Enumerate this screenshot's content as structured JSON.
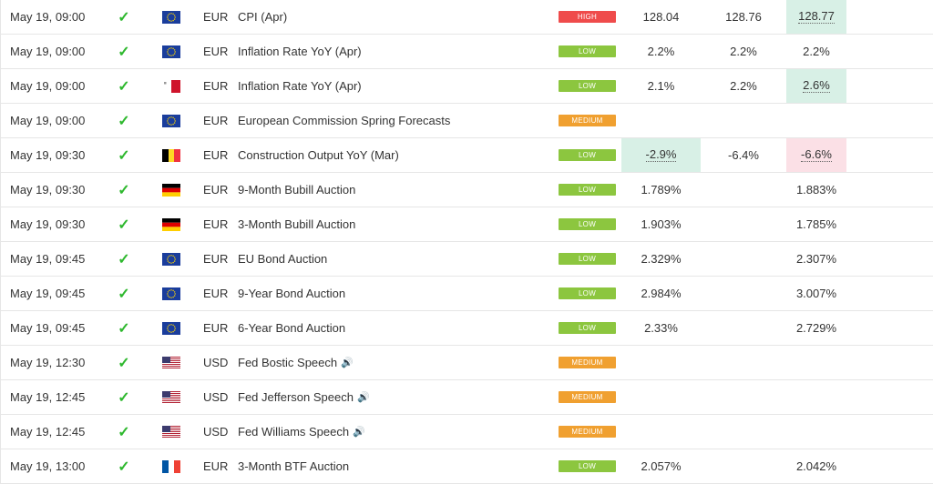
{
  "colors": {
    "high": "#ef4b4b",
    "low": "#8cc63f",
    "medium": "#f0a030",
    "check": "#2eb82e",
    "better": "#d8f0e6",
    "worse": "#fbe0e6"
  },
  "rows": [
    {
      "time": "May 19, 09:00",
      "flag": "eu",
      "currency": "EUR",
      "event": "CPI (Apr)",
      "importance": "HIGH",
      "imp": "high",
      "actual": "128.04",
      "forecast": "128.76",
      "previous": "128.77",
      "hl": "prev-green"
    },
    {
      "time": "May 19, 09:00",
      "flag": "eu",
      "currency": "EUR",
      "event": "Inflation Rate YoY (Apr)",
      "importance": "LOW",
      "imp": "low",
      "actual": "2.2%",
      "forecast": "2.2%",
      "previous": "2.2%",
      "hl": ""
    },
    {
      "time": "May 19, 09:00",
      "flag": "mt",
      "currency": "EUR",
      "event": "Inflation Rate YoY (Apr)",
      "importance": "LOW",
      "imp": "low",
      "actual": "2.1%",
      "forecast": "2.2%",
      "previous": "2.6%",
      "hl": "prev-green"
    },
    {
      "time": "May 19, 09:00",
      "flag": "eu",
      "currency": "EUR",
      "event": "European Commission Spring Forecasts",
      "importance": "MEDIUM",
      "imp": "medium",
      "actual": "",
      "forecast": "",
      "previous": "",
      "hl": ""
    },
    {
      "time": "May 19, 09:30",
      "flag": "be",
      "currency": "EUR",
      "event": "Construction Output YoY (Mar)",
      "importance": "LOW",
      "imp": "low",
      "actual": "-2.9%",
      "forecast": "-6.4%",
      "previous": "-6.6%",
      "hl": "actual-green prev-red"
    },
    {
      "time": "May 19, 09:30",
      "flag": "de",
      "currency": "EUR",
      "event": "9-Month Bubill Auction",
      "importance": "LOW",
      "imp": "low",
      "actual": "1.789%",
      "forecast": "",
      "previous": "1.883%",
      "hl": ""
    },
    {
      "time": "May 19, 09:30",
      "flag": "de",
      "currency": "EUR",
      "event": "3-Month Bubill Auction",
      "importance": "LOW",
      "imp": "low",
      "actual": "1.903%",
      "forecast": "",
      "previous": "1.785%",
      "hl": ""
    },
    {
      "time": "May 19, 09:45",
      "flag": "eu",
      "currency": "EUR",
      "event": "EU Bond Auction",
      "importance": "LOW",
      "imp": "low",
      "actual": "2.329%",
      "forecast": "",
      "previous": "2.307%",
      "hl": ""
    },
    {
      "time": "May 19, 09:45",
      "flag": "eu",
      "currency": "EUR",
      "event": "9-Year Bond Auction",
      "importance": "LOW",
      "imp": "low",
      "actual": "2.984%",
      "forecast": "",
      "previous": "3.007%",
      "hl": ""
    },
    {
      "time": "May 19, 09:45",
      "flag": "eu",
      "currency": "EUR",
      "event": "6-Year Bond Auction",
      "importance": "LOW",
      "imp": "low",
      "actual": "2.33%",
      "forecast": "",
      "previous": "2.729%",
      "hl": ""
    },
    {
      "time": "May 19, 12:30",
      "flag": "us",
      "currency": "USD",
      "event": "Fed Bostic Speech",
      "importance": "MEDIUM",
      "imp": "medium",
      "actual": "",
      "forecast": "",
      "previous": "",
      "hl": "",
      "speech": true
    },
    {
      "time": "May 19, 12:45",
      "flag": "us",
      "currency": "USD",
      "event": "Fed Jefferson Speech",
      "importance": "MEDIUM",
      "imp": "medium",
      "actual": "",
      "forecast": "",
      "previous": "",
      "hl": "",
      "speech": true
    },
    {
      "time": "May 19, 12:45",
      "flag": "us",
      "currency": "USD",
      "event": "Fed Williams Speech",
      "importance": "MEDIUM",
      "imp": "medium",
      "actual": "",
      "forecast": "",
      "previous": "",
      "hl": "",
      "speech": true
    },
    {
      "time": "May 19, 13:00",
      "flag": "fr",
      "currency": "EUR",
      "event": "3-Month BTF Auction",
      "importance": "LOW",
      "imp": "low",
      "actual": "2.057%",
      "forecast": "",
      "previous": "2.042%",
      "hl": ""
    }
  ]
}
